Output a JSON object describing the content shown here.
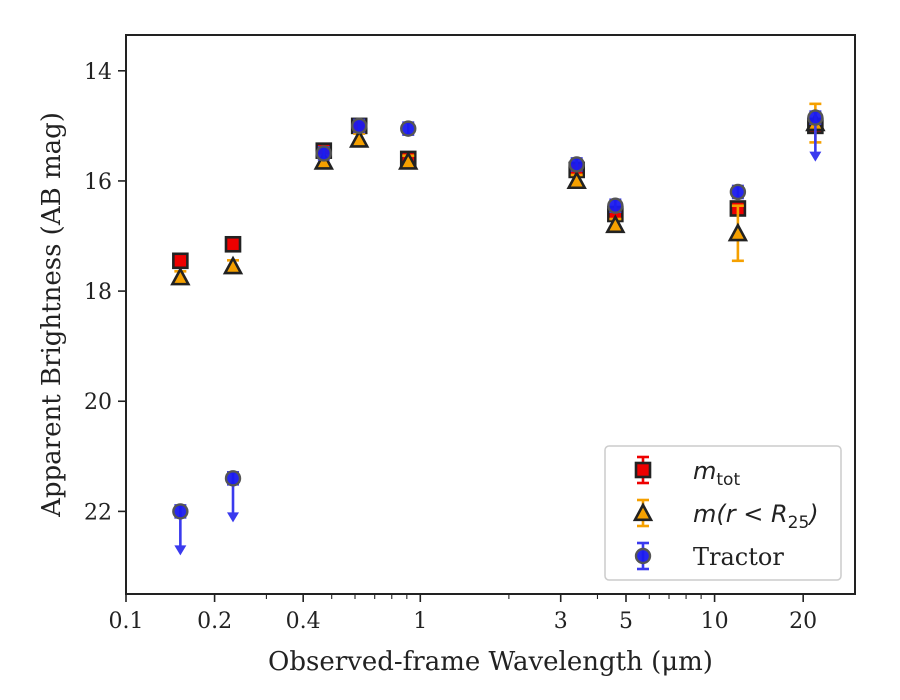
{
  "chart_data": {
    "type": "scatter",
    "title": "",
    "xlabel": "Observed-frame Wavelength (μm)",
    "ylabel": "Apparent Brightness (AB mag)",
    "xscale": "log",
    "xlim": [
      0.1,
      30
    ],
    "ylim": [
      23.5,
      13.35
    ],
    "y_inverted": true,
    "x_ticks": [
      0.1,
      0.2,
      0.4,
      1,
      3,
      5,
      10,
      20
    ],
    "x_tick_labels": [
      "0.1",
      "0.2",
      "0.4",
      "1",
      "3",
      "5",
      "10",
      "20"
    ],
    "y_ticks": [
      14,
      16,
      18,
      20,
      22
    ],
    "y_tick_labels": [
      "14",
      "16",
      "18",
      "20",
      "22"
    ],
    "legend_position": "lower right",
    "series": [
      {
        "name": "m_tot",
        "label_main": "m",
        "label_sub": "tot",
        "marker": "square",
        "color": "#ee0000",
        "errcolor": "#ee0000",
        "points": [
          {
            "x": 0.153,
            "y": 17.45
          },
          {
            "x": 0.231,
            "y": 17.15
          },
          {
            "x": 0.47,
            "y": 15.45
          },
          {
            "x": 0.62,
            "y": 15.0
          },
          {
            "x": 0.91,
            "y": 15.6
          },
          {
            "x": 3.4,
            "y": 15.8
          },
          {
            "x": 4.6,
            "y": 16.6
          },
          {
            "x": 12.0,
            "y": 16.5
          },
          {
            "x": 22.0,
            "y": 15.0
          }
        ]
      },
      {
        "name": "m(r < R_25)",
        "label_main": "m(r < R",
        "label_sub": "25",
        "label_tail": ")",
        "marker": "triangle",
        "color": "#f5a000",
        "errcolor": "#f5a000",
        "points": [
          {
            "x": 0.153,
            "y": 17.75
          },
          {
            "x": 0.231,
            "y": 17.55
          },
          {
            "x": 0.47,
            "y": 15.65
          },
          {
            "x": 0.62,
            "y": 15.25
          },
          {
            "x": 0.91,
            "y": 15.65
          },
          {
            "x": 3.4,
            "y": 16.0
          },
          {
            "x": 4.6,
            "y": 16.8
          },
          {
            "x": 12.0,
            "y": 16.95,
            "err": 0.5
          },
          {
            "x": 22.0,
            "y": 14.95,
            "err": 0.35
          }
        ]
      },
      {
        "name": "Tractor",
        "label_main": "Tractor",
        "marker": "circle",
        "color": "#1a1aee",
        "errcolor": "#3a3aee",
        "points": [
          {
            "x": 0.153,
            "y": 22.0,
            "upper_limit": true
          },
          {
            "x": 0.231,
            "y": 21.4,
            "upper_limit": true
          },
          {
            "x": 0.47,
            "y": 15.5
          },
          {
            "x": 0.62,
            "y": 15.0
          },
          {
            "x": 0.91,
            "y": 15.05
          },
          {
            "x": 3.4,
            "y": 15.7
          },
          {
            "x": 4.6,
            "y": 16.45
          },
          {
            "x": 12.0,
            "y": 16.2
          },
          {
            "x": 22.0,
            "y": 14.85,
            "upper_limit": true
          }
        ]
      }
    ]
  }
}
